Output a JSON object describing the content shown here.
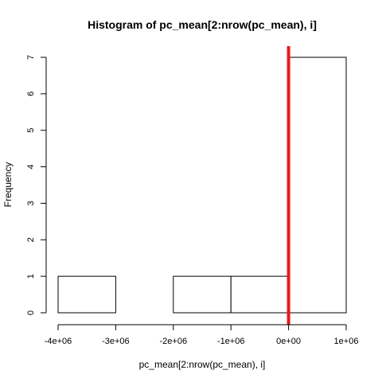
{
  "chart_data": {
    "type": "histogram",
    "title": "Histogram of pc_mean[2:nrow(pc_mean), i]",
    "xlabel": "pc_mean[2:nrow(pc_mean), i]",
    "ylabel": "Frequency",
    "bins": [
      {
        "x0": -4000000,
        "x1": -3000000,
        "count": 1
      },
      {
        "x0": -3000000,
        "x1": -2000000,
        "count": 0
      },
      {
        "x0": -2000000,
        "x1": -1000000,
        "count": 1
      },
      {
        "x0": -1000000,
        "x1": 0,
        "count": 1
      },
      {
        "x0": 0,
        "x1": 1000000,
        "count": 7
      }
    ],
    "xlim": [
      -4000000,
      1000000
    ],
    "ylim": [
      0,
      7
    ],
    "x_ticks": [
      -4000000,
      -3000000,
      -2000000,
      -1000000,
      0,
      1000000
    ],
    "x_tick_labels": [
      "-4e+06",
      "-3e+06",
      "-2e+06",
      "-1e+06",
      "0e+00",
      "1e+06"
    ],
    "y_ticks": [
      0,
      1,
      2,
      3,
      4,
      5,
      6,
      7
    ],
    "y_tick_labels": [
      "0",
      "1",
      "2",
      "3",
      "4",
      "5",
      "6",
      "7"
    ],
    "vline": {
      "x": 0,
      "color": "#e41a1c"
    },
    "bar_fill": "#ffffff",
    "bar_stroke": "#000000",
    "grid": false,
    "legend": "none"
  }
}
